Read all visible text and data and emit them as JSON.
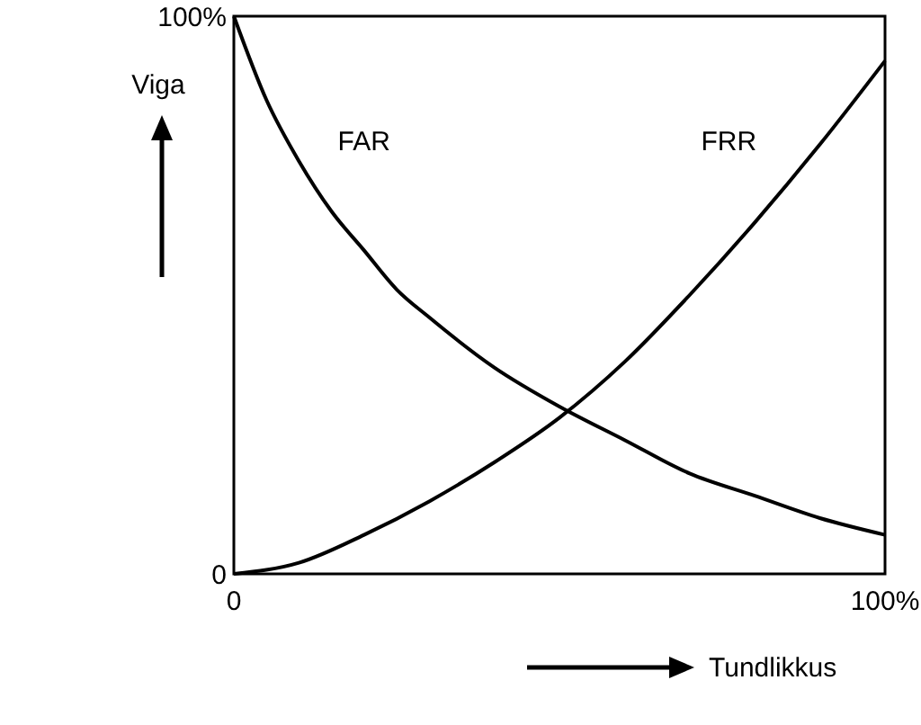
{
  "chart_data": {
    "type": "line",
    "xlabel": "Tundlikkus",
    "ylabel": "Viga",
    "xlim": [
      0,
      100
    ],
    "ylim": [
      0,
      100
    ],
    "xticks": [
      0,
      {
        "value": 100,
        "label": "100%"
      }
    ],
    "yticks": [
      0,
      {
        "value": 100,
        "label": "100%"
      }
    ],
    "grid": false,
    "legend": false,
    "marker": "none",
    "line_style": "solid",
    "series": [
      {
        "name": "FAR",
        "color": "#000000",
        "x": [
          0,
          5,
          10,
          15,
          20,
          25,
          30,
          40,
          50,
          60,
          70,
          80,
          90,
          100
        ],
        "values": [
          100,
          85,
          74,
          65,
          58,
          51,
          46,
          37,
          30,
          24,
          18,
          14,
          10,
          7
        ]
      },
      {
        "name": "FRR",
        "color": "#000000",
        "x": [
          0,
          10,
          20,
          30,
          40,
          50,
          60,
          70,
          80,
          90,
          100
        ],
        "values": [
          0,
          2,
          7,
          13,
          20,
          28,
          38,
          50,
          63,
          77,
          92
        ]
      }
    ]
  }
}
